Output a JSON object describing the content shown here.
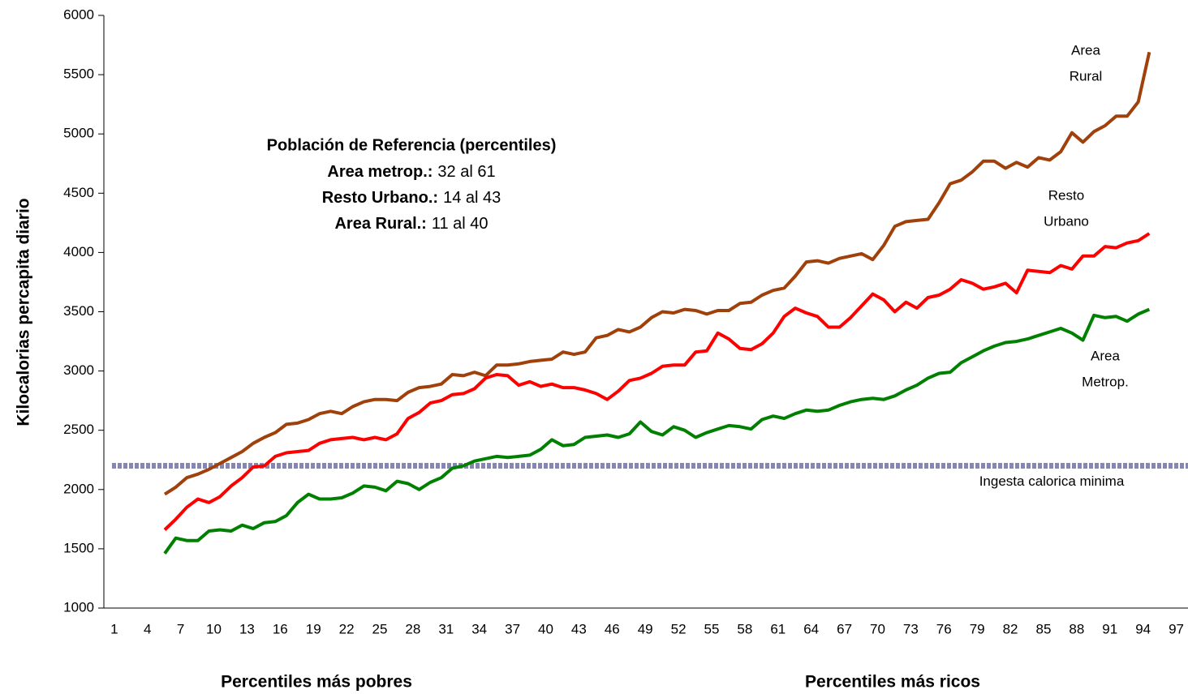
{
  "chart_data": {
    "type": "line",
    "y_label": "Kilocalorias percapita diario",
    "x_labels": [
      "Percentiles más pobres",
      "Percentiles más ricos"
    ],
    "categories": [
      1,
      null,
      null,
      4,
      null,
      null,
      7,
      null,
      null,
      10,
      null,
      null,
      13,
      null,
      null,
      16,
      null,
      null,
      19,
      null,
      null,
      22,
      null,
      null,
      25,
      null,
      null,
      28,
      null,
      null,
      31,
      null,
      null,
      34,
      null,
      null,
      37,
      null,
      null,
      40,
      null,
      null,
      43,
      null,
      null,
      46,
      null,
      null,
      49,
      null,
      null,
      52,
      null,
      null,
      55,
      null,
      null,
      58,
      null,
      null,
      61,
      null,
      null,
      64,
      null,
      null,
      67,
      null,
      null,
      70,
      null,
      null,
      73,
      null,
      null,
      76,
      null,
      null,
      79,
      null,
      null,
      82,
      null,
      null,
      85,
      null,
      null,
      88,
      null,
      null,
      91,
      null,
      null,
      94,
      null,
      null,
      97,
      null
    ],
    "ylim": [
      1000,
      6000
    ],
    "yticks": [
      1000,
      1500,
      2000,
      2500,
      3000,
      3500,
      4000,
      4500,
      5000,
      5500,
      6000
    ],
    "series": [
      {
        "name": [
          "Area",
          "Rural"
        ],
        "color": "#a0400a",
        "values": [
          null,
          null,
          null,
          null,
          null,
          1960,
          2020,
          2100,
          2130,
          2170,
          2220,
          2270,
          2320,
          2390,
          2440,
          2480,
          2550,
          2560,
          2590,
          2640,
          2660,
          2640,
          2700,
          2740,
          2760,
          2760,
          2750,
          2820,
          2860,
          2870,
          2890,
          2970,
          2960,
          2990,
          2960,
          3050,
          3050,
          3060,
          3080,
          3090,
          3100,
          3160,
          3140,
          3160,
          3280,
          3300,
          3350,
          3330,
          3370,
          3450,
          3500,
          3490,
          3520,
          3510,
          3480,
          3510,
          3510,
          3570,
          3580,
          3640,
          3680,
          3700,
          3800,
          3920,
          3930,
          3910,
          3950,
          3970,
          3990,
          3940,
          4060,
          4220,
          4260,
          4270,
          4280,
          4420,
          4580,
          4610,
          4680,
          4770,
          4770,
          4710,
          4760,
          4720,
          4800,
          4780,
          4850,
          5010,
          4930,
          5020,
          5070,
          5150,
          5150,
          5270,
          5690,
          null,
          null,
          null
        ]
      },
      {
        "name": [
          "Resto",
          "Urbano"
        ],
        "color": "#ff0000",
        "values": [
          null,
          null,
          null,
          null,
          null,
          1660,
          1750,
          1850,
          1920,
          1890,
          1940,
          2030,
          2100,
          2190,
          2200,
          2280,
          2310,
          2320,
          2330,
          2390,
          2420,
          2430,
          2440,
          2420,
          2440,
          2420,
          2470,
          2600,
          2650,
          2730,
          2750,
          2800,
          2810,
          2850,
          2940,
          2970,
          2960,
          2880,
          2910,
          2870,
          2890,
          2860,
          2860,
          2840,
          2810,
          2760,
          2830,
          2920,
          2940,
          2980,
          3040,
          3050,
          3050,
          3160,
          3170,
          3320,
          3270,
          3190,
          3180,
          3230,
          3320,
          3460,
          3530,
          3490,
          3460,
          3370,
          3370,
          3450,
          3550,
          3650,
          3600,
          3500,
          3580,
          3530,
          3620,
          3640,
          3690,
          3770,
          3740,
          3690,
          3710,
          3740,
          3660,
          3850,
          3840,
          3830,
          3890,
          3860,
          3970,
          3970,
          4050,
          4040,
          4080,
          4100,
          4160,
          null,
          null,
          null
        ]
      },
      {
        "name": [
          "Area",
          "Metrop."
        ],
        "color": "#008000",
        "values": [
          null,
          null,
          null,
          null,
          null,
          1460,
          1590,
          1570,
          1570,
          1650,
          1660,
          1650,
          1700,
          1670,
          1720,
          1730,
          1780,
          1890,
          1960,
          1920,
          1920,
          1930,
          1970,
          2030,
          2020,
          1990,
          2070,
          2050,
          2000,
          2060,
          2100,
          2180,
          2200,
          2240,
          2260,
          2280,
          2270,
          2280,
          2290,
          2340,
          2420,
          2370,
          2380,
          2440,
          2450,
          2460,
          2440,
          2470,
          2570,
          2490,
          2460,
          2530,
          2500,
          2440,
          2480,
          2510,
          2540,
          2530,
          2510,
          2590,
          2620,
          2600,
          2640,
          2670,
          2660,
          2670,
          2710,
          2740,
          2760,
          2770,
          2760,
          2790,
          2840,
          2880,
          2940,
          2980,
          2990,
          3070,
          3120,
          3170,
          3210,
          3240,
          3250,
          3270,
          3300,
          3330,
          3360,
          3320,
          3260,
          3470,
          3450,
          3460,
          3420,
          3480,
          3520,
          null,
          null,
          null
        ]
      }
    ],
    "reference_line": {
      "value": 2200,
      "label": "Ingesta calorica minima",
      "color": "#8585b8"
    },
    "info_box": {
      "title": "Población de Referencia (percentiles)",
      "lines": [
        {
          "label": "Area metrop.:",
          "text": "32 al 61"
        },
        {
          "label": "Resto Urbano.:",
          "text": "14 al 43"
        },
        {
          "label": "Area Rural.:",
          "text": "11 al  40"
        }
      ]
    }
  }
}
